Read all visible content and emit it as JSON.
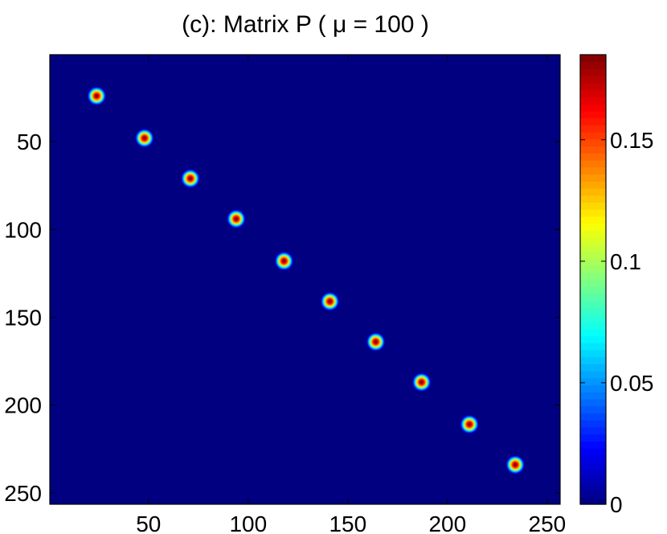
{
  "chart_data": {
    "type": "heatmap",
    "title": "(c): Matrix P ( μ = 100 )",
    "matrix_size": 256,
    "xlim": [
      0.5,
      256.5
    ],
    "ylim": [
      0.5,
      256.5
    ],
    "y_axis_reversed": true,
    "x_ticks": [
      50,
      100,
      150,
      200,
      250
    ],
    "y_ticks": [
      50,
      100,
      150,
      200,
      250
    ],
    "x_tick_labels": [
      "50",
      "100",
      "150",
      "200",
      "250"
    ],
    "y_tick_labels": [
      "50",
      "100",
      "150",
      "200",
      "250"
    ],
    "peaks": [
      {
        "row": 24,
        "col": 24,
        "value": 0.18
      },
      {
        "row": 48,
        "col": 48,
        "value": 0.18
      },
      {
        "row": 71,
        "col": 71,
        "value": 0.18
      },
      {
        "row": 94,
        "col": 94,
        "value": 0.18
      },
      {
        "row": 118,
        "col": 118,
        "value": 0.18
      },
      {
        "row": 141,
        "col": 141,
        "value": 0.18
      },
      {
        "row": 164,
        "col": 164,
        "value": 0.18
      },
      {
        "row": 187,
        "col": 187,
        "value": 0.18
      },
      {
        "row": 211,
        "col": 211,
        "value": 0.18
      },
      {
        "row": 234,
        "col": 234,
        "value": 0.18
      }
    ],
    "background_value": 0,
    "colormap": "jet",
    "colorbar": {
      "range": [
        0,
        0.185
      ],
      "ticks": [
        0,
        0.05,
        0.1,
        0.15
      ],
      "tick_labels": [
        "0",
        "0.05",
        "0.1",
        "0.15"
      ]
    },
    "colors": {
      "background": "#0000ff",
      "low": "#00008f",
      "high": "#800000"
    }
  }
}
